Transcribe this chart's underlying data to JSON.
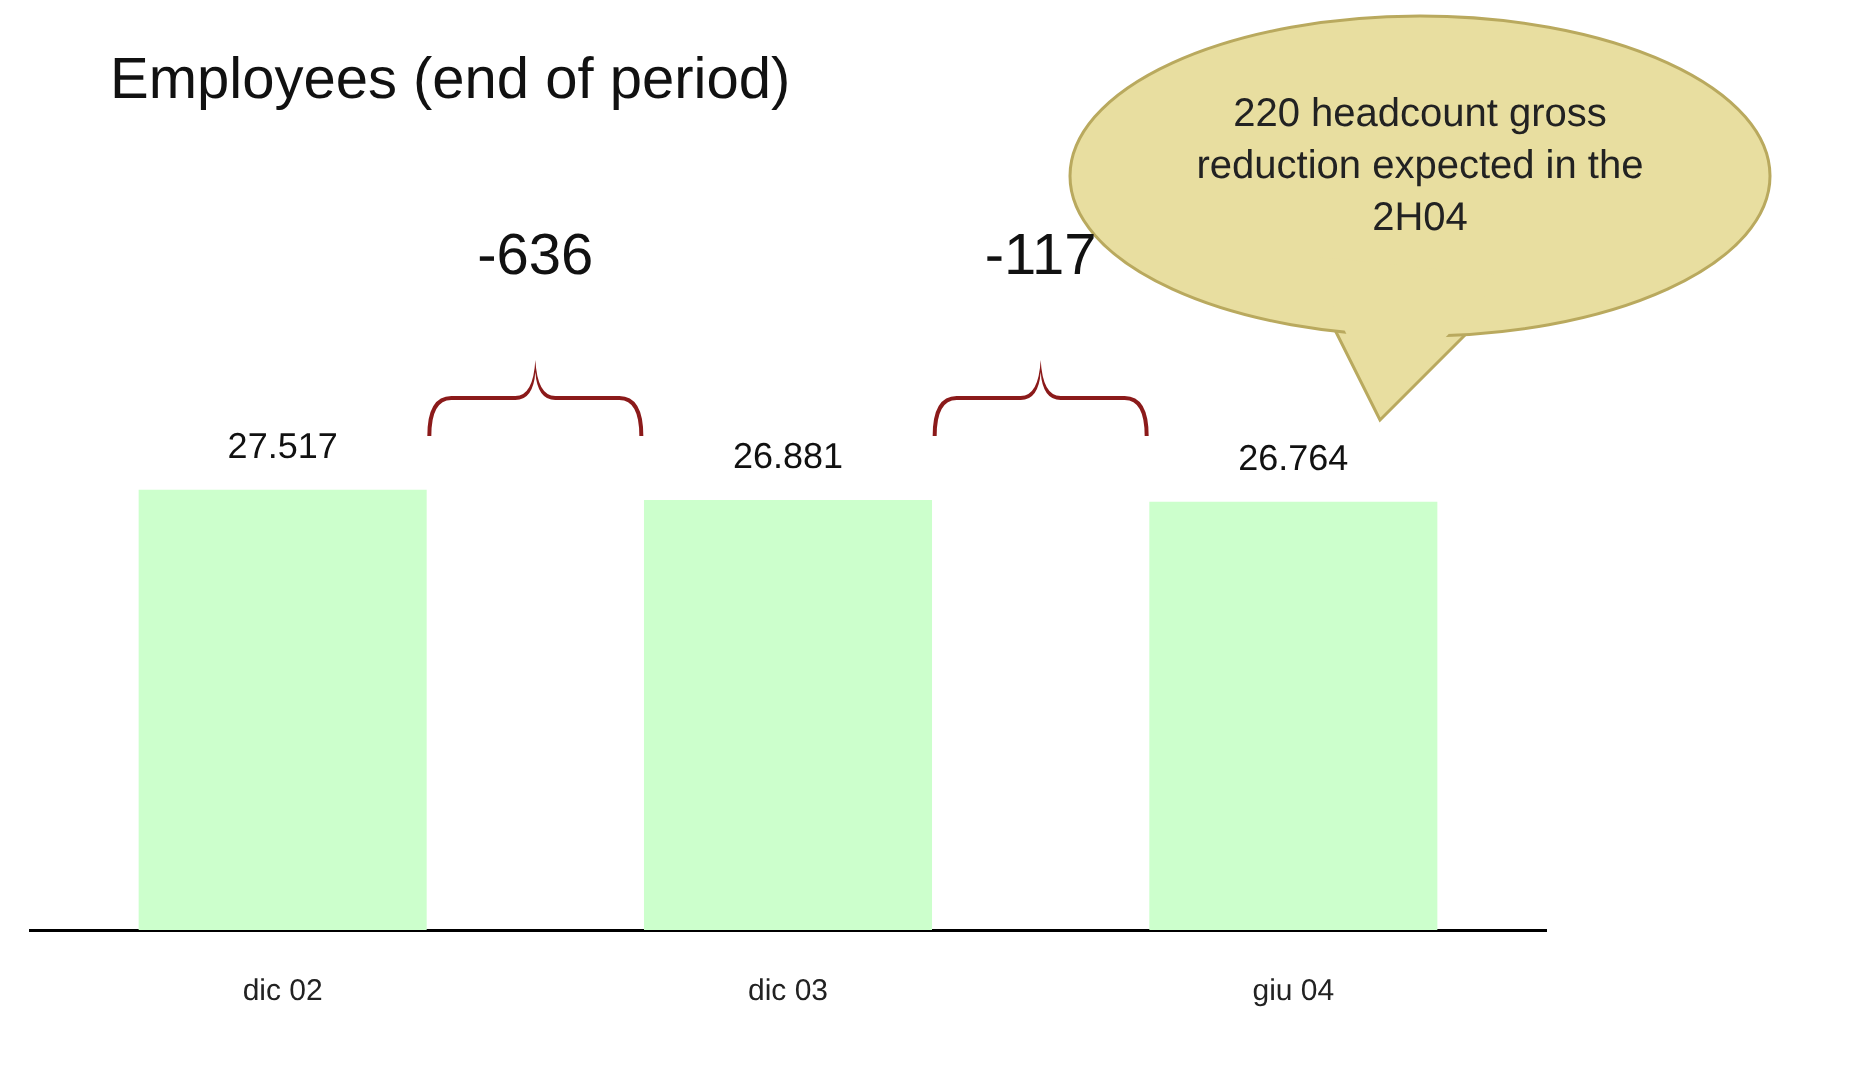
{
  "chart_data": {
    "type": "bar",
    "title": "Employees (end of period)",
    "categories": [
      "dic 02",
      "dic 03",
      "giu 04"
    ],
    "values": [
      27517,
      26881,
      26764
    ],
    "value_labels": [
      "27.517",
      "26.881",
      "26.764"
    ],
    "color": "#ccffcc",
    "tick_labels": "x",
    "grid": false,
    "legend": false,
    "annotations": [
      "-636",
      "-117",
      "220 headcount gross reduction expected in the 2H04"
    ]
  }
}
